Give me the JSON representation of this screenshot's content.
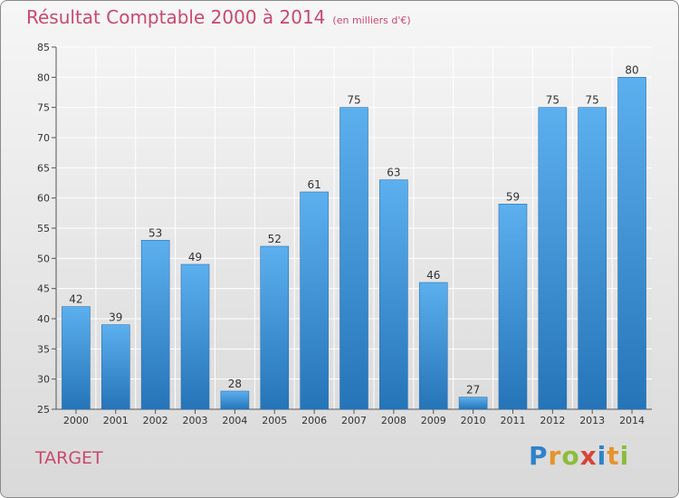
{
  "chart_data": {
    "type": "bar",
    "title": "Résultat Comptable 2000 à 2014",
    "subtitle": "(en milliers d'€)",
    "xlabel": "",
    "ylabel": "",
    "categories": [
      "2000",
      "2001",
      "2002",
      "2003",
      "2004",
      "2005",
      "2006",
      "2007",
      "2008",
      "2009",
      "2010",
      "2011",
      "2012",
      "2013",
      "2014"
    ],
    "values": [
      42,
      39,
      53,
      49,
      28,
      52,
      61,
      75,
      63,
      46,
      27,
      59,
      75,
      75,
      80
    ],
    "ylim": [
      25,
      85
    ],
    "yticks": [
      25,
      30,
      35,
      40,
      45,
      50,
      55,
      60,
      65,
      70,
      75,
      80,
      85
    ],
    "grid": true,
    "bar_color": "#3d8fd6",
    "title_color": "#c8496e"
  },
  "footer": {
    "company": "TARGET",
    "brand": "Proxiti",
    "brand_letters": [
      {
        "ch": "P",
        "color": "#2f82c9"
      },
      {
        "ch": "r",
        "color": "#e6942a"
      },
      {
        "ch": "o",
        "color": "#8bbd3c"
      },
      {
        "ch": "x",
        "color": "#d8443a"
      },
      {
        "ch": "i",
        "color": "#2f82c9"
      },
      {
        "ch": "t",
        "color": "#e6942a"
      },
      {
        "ch": "i",
        "color": "#8bbd3c"
      }
    ]
  }
}
